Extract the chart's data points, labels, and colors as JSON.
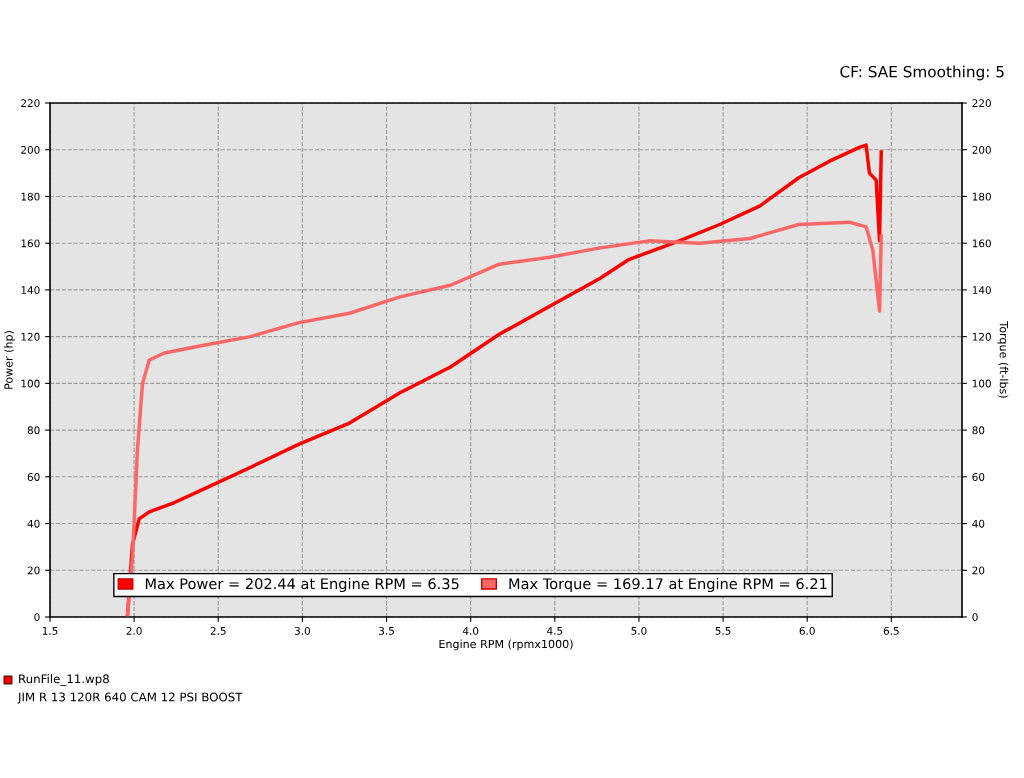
{
  "chart_data": {
    "type": "line",
    "xlabel": "Engine RPM (rpmx1000)",
    "ylabel": "Power (hp)",
    "y2label": "Torque (ft-lbs)",
    "annotations": [
      "CF: SAE Smoothing: 5",
      "RunFile_11.wp8",
      "JIM R 13 120R 640 CAM 12 PSI BOOST"
    ],
    "xlim": [
      1.5,
      6.92
    ],
    "xticks": [
      1.5,
      {
        "value": 2,
        "label": "2.0"
      },
      2.5,
      {
        "value": 3,
        "label": "3.0"
      },
      3.5,
      {
        "value": 4,
        "label": "4.0"
      },
      4.5,
      {
        "value": 5,
        "label": "5.0"
      },
      5.5,
      {
        "value": 6,
        "label": "6.0"
      },
      6.5
    ],
    "ylim": [
      0,
      220
    ],
    "yticks": [
      0,
      20,
      40,
      60,
      80,
      100,
      120,
      140,
      160,
      180,
      200,
      220
    ],
    "y2lim": [
      0,
      220
    ],
    "y2ticks": [
      0,
      20,
      40,
      60,
      80,
      100,
      120,
      140,
      160,
      180,
      200,
      220
    ],
    "grid": true,
    "legend": "bottom",
    "line_style": "solid",
    "marker": "none",
    "series": [
      {
        "name": "Max Power = 202.44 at Engine RPM = 6.35",
        "color": "#ff0000",
        "x": [
          1.96,
          1.99,
          2.03,
          2.09,
          2.24,
          2.39,
          2.69,
          2.98,
          3.28,
          3.58,
          3.88,
          4.17,
          4.47,
          4.77,
          4.94,
          5.24,
          5.48,
          5.72,
          5.95,
          6.13,
          6.31,
          6.35,
          6.37,
          6.41,
          6.43,
          6.44
        ],
        "values": [
          0,
          31,
          42,
          45,
          49,
          54,
          64,
          74,
          83,
          96,
          107,
          121,
          133,
          145,
          153,
          161,
          168,
          176,
          188,
          195,
          201,
          202,
          190,
          187,
          161,
          199
        ]
      },
      {
        "name": "Max Torque = 169.17 at Engine RPM = 6.21",
        "color": "#ff6666",
        "axis": "y2",
        "x": [
          1.96,
          1.99,
          2.02,
          2.05,
          2.09,
          2.18,
          2.39,
          2.69,
          2.98,
          3.28,
          3.58,
          3.88,
          4.17,
          4.47,
          4.77,
          5.06,
          5.36,
          5.66,
          5.95,
          6.25,
          6.35,
          6.39,
          6.43,
          6.44
        ],
        "values": [
          0,
          25,
          72,
          100,
          110,
          113,
          116,
          120,
          126,
          130,
          137,
          142,
          151,
          154,
          158,
          161,
          160,
          162,
          168,
          169,
          167,
          157,
          131,
          163
        ]
      }
    ]
  }
}
